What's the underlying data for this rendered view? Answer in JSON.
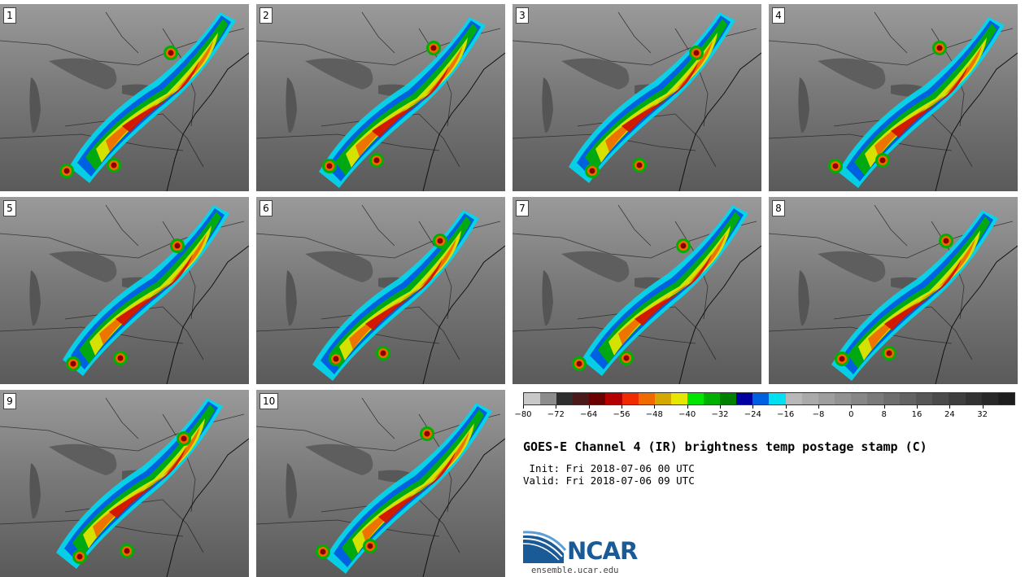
{
  "panels": [
    {
      "label": "1"
    },
    {
      "label": "2"
    },
    {
      "label": "3"
    },
    {
      "label": "4"
    },
    {
      "label": "5"
    },
    {
      "label": "6"
    },
    {
      "label": "7"
    },
    {
      "label": "8"
    },
    {
      "label": "9"
    },
    {
      "label": "10"
    }
  ],
  "colorbar": {
    "colors": [
      "#c8c8c8",
      "#8c8c8c",
      "#2e2e2e",
      "#4a1a1a",
      "#6a0000",
      "#b40000",
      "#f22a00",
      "#f06a00",
      "#d4a800",
      "#e6e600",
      "#00e600",
      "#00b000",
      "#008000",
      "#0000a0",
      "#0060e0",
      "#00e0f0",
      "#b8b8b8",
      "#aaaaaa",
      "#9e9e9e",
      "#929292",
      "#868686",
      "#7a7a7a",
      "#6e6e6e",
      "#626262",
      "#565656",
      "#4a4a4a",
      "#3e3e3e",
      "#323232",
      "#282828",
      "#1e1e1e"
    ],
    "ticks": [
      "−80",
      "−72",
      "−64",
      "−56",
      "−48",
      "−40",
      "−32",
      "−24",
      "−16",
      "−8",
      "0",
      "8",
      "16",
      "24",
      "32"
    ]
  },
  "title": "GOES-E Channel 4 (IR) brightness temp postage stamp (C)",
  "init": " Init: Fri 2018-07-06 00 UTC",
  "valid": "Valid: Fri 2018-07-06 09 UTC",
  "logo": {
    "text": "NCAR",
    "site": "ensemble.ucar.edu"
  }
}
